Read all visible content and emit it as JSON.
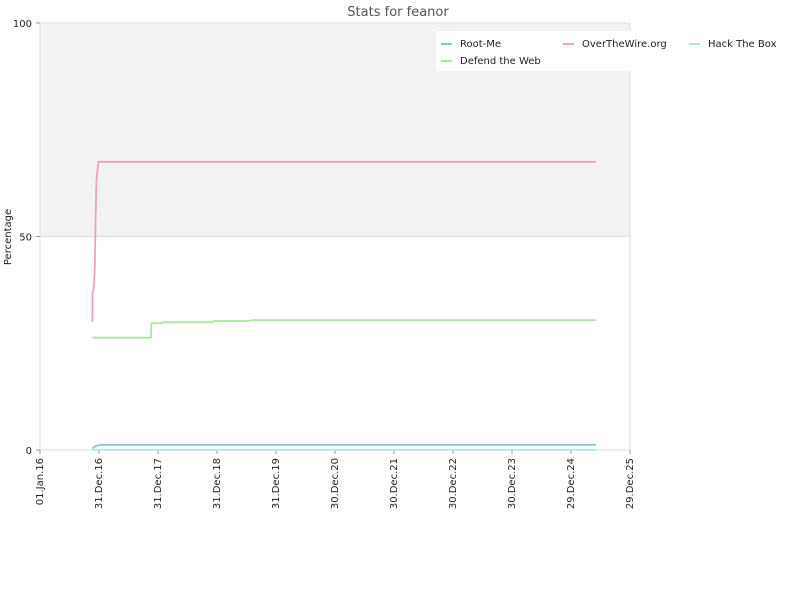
{
  "chart_data": {
    "type": "line",
    "title": "Stats for feanor",
    "xlabel": "",
    "ylabel": "Percentage",
    "ylim": [
      0,
      100
    ],
    "xlim": [
      "2016-01-01",
      "2025-12-29"
    ],
    "y_ticks": [
      0,
      50,
      100
    ],
    "x_ticks": [
      {
        "date": "2016-01-01",
        "label": "01.Jan.16"
      },
      {
        "date": "2016-12-31",
        "label": "31.Dec.16"
      },
      {
        "date": "2017-12-31",
        "label": "31.Dec.17"
      },
      {
        "date": "2018-12-31",
        "label": "31.Dec.18"
      },
      {
        "date": "2019-12-31",
        "label": "31.Dec.19"
      },
      {
        "date": "2020-12-30",
        "label": "30.Dec.20"
      },
      {
        "date": "2021-12-30",
        "label": "30.Dec.21"
      },
      {
        "date": "2022-12-30",
        "label": "30.Dec.22"
      },
      {
        "date": "2023-12-30",
        "label": "30.Dec.23"
      },
      {
        "date": "2024-12-29",
        "label": "29.Dec.24"
      },
      {
        "date": "2025-12-29",
        "label": "29.Dec.25"
      }
    ],
    "grid": true,
    "band_above": 50,
    "legend_position": "top-right",
    "series": [
      {
        "name": "Root-Me",
        "color": "#8cc0d4",
        "points": [
          [
            "2016-11-20",
            0.3
          ],
          [
            "2016-12-08",
            0.9
          ],
          [
            "2017-01-05",
            1.2
          ],
          [
            "2025-06-01",
            1.2
          ]
        ]
      },
      {
        "name": "OverTheWire.org",
        "color": "#f0a0c0",
        "points": [
          [
            "2016-11-20",
            30
          ],
          [
            "2016-11-21",
            36.5
          ],
          [
            "2016-11-30",
            38.5
          ],
          [
            "2016-12-05",
            43
          ],
          [
            "2016-12-10",
            54
          ],
          [
            "2016-12-15",
            63
          ],
          [
            "2016-12-20",
            65
          ],
          [
            "2016-12-28",
            67.5
          ],
          [
            "2025-06-01",
            67.5
          ]
        ]
      },
      {
        "name": "Hack The Box",
        "color": "#a8e6e6",
        "points": [
          [
            "2016-11-20",
            0
          ],
          [
            "2025-06-01",
            0
          ]
        ]
      },
      {
        "name": "Defend the Web",
        "color": "#a8e8a0",
        "points": [
          [
            "2016-11-20",
            26.3
          ],
          [
            "2017-11-18",
            26.3
          ],
          [
            "2017-11-20",
            29.7
          ],
          [
            "2018-01-20",
            29.7
          ],
          [
            "2018-02-01",
            29.9
          ],
          [
            "2018-12-01",
            29.9
          ],
          [
            "2018-12-10",
            30.2
          ],
          [
            "2019-07-20",
            30.2
          ],
          [
            "2019-08-01",
            30.4
          ],
          [
            "2025-06-01",
            30.4
          ]
        ]
      }
    ],
    "legend_order": [
      "Root-Me",
      "OverTheWire.org",
      "Hack The Box",
      "Defend the Web"
    ]
  }
}
